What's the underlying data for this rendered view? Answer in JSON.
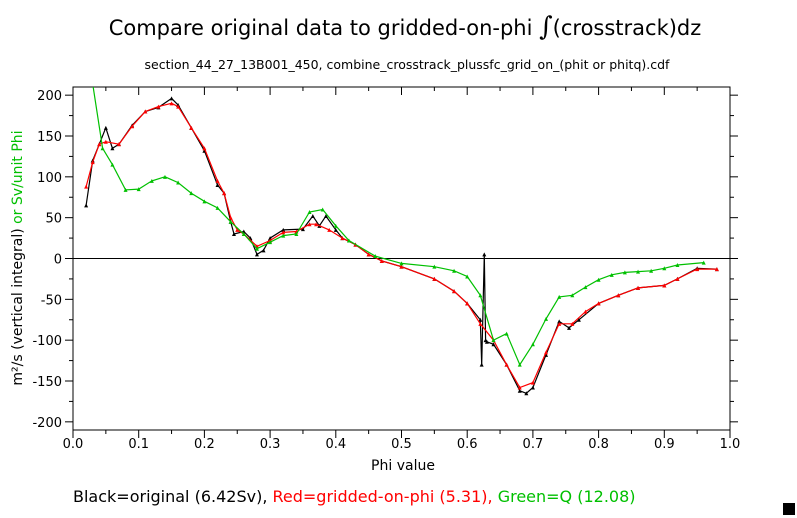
{
  "chart_data": {
    "type": "line",
    "title": "Compare original data to gridded-on-phi ∫(crosstrack)dz",
    "title_parts": {
      "prefix": "Compare original data to gridded-on-phi ",
      "integral": "∫",
      "suffix": "(crosstrack)dz"
    },
    "subtitle": "section_44_27_13B001_450, combine_crosstrack_plussfc_grid_on_(phit or phitq).cdf",
    "xlabel": "Phi value",
    "ylabel_black": "m²/s (vertical integral)",
    "ylabel_or": " or ",
    "ylabel_green": "Sv/unit Phi",
    "xlim": [
      0,
      1.0
    ],
    "ylim": [
      -210,
      210
    ],
    "xticks": [
      0.0,
      0.1,
      0.2,
      0.3,
      0.4,
      0.5,
      0.6,
      0.7,
      0.8,
      0.9,
      1.0
    ],
    "xtick_labels": [
      "0.0",
      "0.1",
      "0.2",
      "0.3",
      "0.4",
      "0.5",
      "0.6",
      "0.7",
      "0.8",
      "0.9",
      "1.0"
    ],
    "yticks": [
      200,
      150,
      100,
      50,
      0,
      -50,
      -100,
      -150,
      -200
    ],
    "ytick_labels": [
      "200",
      "150",
      "100",
      "50",
      "0",
      "-50",
      "-100",
      "-150",
      "-200"
    ],
    "legend": {
      "black": "Black=original (6.42Sv),",
      "red": "Red=gridded-on-phi (5.31),",
      "green": "Green=Q (12.08)"
    },
    "series": [
      {
        "name": "original",
        "color": "#000000",
        "x": [
          0.02,
          0.03,
          0.04,
          0.05,
          0.06,
          0.07,
          0.09,
          0.11,
          0.13,
          0.15,
          0.16,
          0.18,
          0.2,
          0.22,
          0.23,
          0.24,
          0.245,
          0.26,
          0.27,
          0.28,
          0.29,
          0.3,
          0.32,
          0.35,
          0.365,
          0.375,
          0.385,
          0.4,
          0.41,
          0.43,
          0.45,
          0.47,
          0.5,
          0.55,
          0.58,
          0.6,
          0.62,
          0.622,
          0.626,
          0.628,
          0.63,
          0.64,
          0.66,
          0.68,
          0.69,
          0.7,
          0.72,
          0.74,
          0.755,
          0.77,
          0.8,
          0.83,
          0.86,
          0.9,
          0.92,
          0.95,
          0.98
        ],
        "y": [
          65,
          120,
          140,
          160,
          135,
          140,
          163,
          180,
          185,
          196,
          188,
          160,
          132,
          90,
          80,
          45,
          30,
          33,
          25,
          5,
          10,
          25,
          35,
          36,
          52,
          40,
          52,
          35,
          25,
          17,
          5,
          -3,
          -10,
          -25,
          -40,
          -55,
          -75,
          -130,
          5,
          -100,
          -102,
          -105,
          -130,
          -162,
          -165,
          -158,
          -118,
          -77,
          -85,
          -75,
          -55,
          -45,
          -36,
          -33,
          -25,
          -12,
          -13
        ]
      },
      {
        "name": "gridded-on-phi",
        "color": "#ff0000",
        "x": [
          0.02,
          0.03,
          0.04,
          0.05,
          0.07,
          0.09,
          0.11,
          0.13,
          0.15,
          0.16,
          0.18,
          0.2,
          0.22,
          0.23,
          0.24,
          0.25,
          0.26,
          0.28,
          0.3,
          0.32,
          0.34,
          0.36,
          0.37,
          0.39,
          0.41,
          0.43,
          0.45,
          0.47,
          0.5,
          0.55,
          0.58,
          0.6,
          0.62,
          0.64,
          0.66,
          0.68,
          0.7,
          0.72,
          0.74,
          0.76,
          0.78,
          0.8,
          0.83,
          0.86,
          0.9,
          0.92,
          0.95,
          0.98
        ],
        "y": [
          88,
          118,
          140,
          143,
          140,
          162,
          180,
          186,
          190,
          186,
          160,
          135,
          95,
          80,
          50,
          35,
          30,
          15,
          22,
          32,
          33,
          42,
          42,
          35,
          25,
          17,
          5,
          -3,
          -10,
          -25,
          -40,
          -55,
          -80,
          -100,
          -130,
          -158,
          -152,
          -115,
          -80,
          -80,
          -65,
          -55,
          -45,
          -36,
          -33,
          -25,
          -13,
          -13
        ]
      },
      {
        "name": "Q",
        "color": "#00c000",
        "x": [
          0.025,
          0.045,
          0.06,
          0.08,
          0.1,
          0.12,
          0.14,
          0.16,
          0.18,
          0.2,
          0.22,
          0.24,
          0.26,
          0.28,
          0.3,
          0.32,
          0.34,
          0.36,
          0.38,
          0.4,
          0.42,
          0.46,
          0.5,
          0.55,
          0.58,
          0.6,
          0.62,
          0.64,
          0.66,
          0.68,
          0.7,
          0.72,
          0.74,
          0.76,
          0.78,
          0.8,
          0.82,
          0.84,
          0.86,
          0.88,
          0.9,
          0.92,
          0.96
        ],
        "y": [
          240,
          135,
          115,
          84,
          85,
          95,
          100,
          93,
          80,
          70,
          62,
          45,
          30,
          12,
          20,
          28,
          30,
          57,
          60,
          40,
          22,
          3,
          -6,
          -10,
          -15,
          -22,
          -45,
          -100,
          -92,
          -130,
          -105,
          -74,
          -47,
          -45,
          -35,
          -26,
          -20,
          -17,
          -16,
          -15,
          -12,
          -8,
          -5
        ]
      }
    ]
  }
}
